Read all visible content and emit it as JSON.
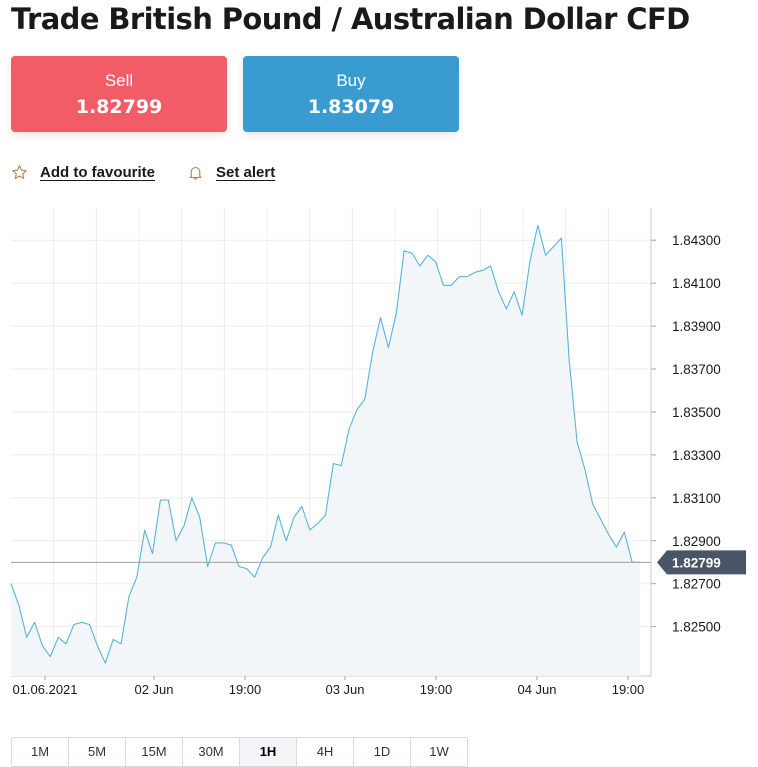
{
  "page": {
    "title": "Trade British Pound / Australian Dollar CFD"
  },
  "trade": {
    "sell": {
      "label": "Sell",
      "price": "1.82799"
    },
    "buy": {
      "label": "Buy",
      "price": "1.83079"
    }
  },
  "actions": {
    "favourite": {
      "label": "Add to favourite",
      "icon": "star-icon"
    },
    "alert": {
      "label": "Set alert",
      "icon": "bell-icon"
    }
  },
  "colors": {
    "sell": "#f25c66",
    "buy": "#3a9bd1",
    "line": "#58b3dc",
    "area": "#f3f6f9",
    "grid": "#ececec",
    "current_price_tag": "#4a5568",
    "icons": "#b8835a"
  },
  "timeframes": {
    "items": [
      "1M",
      "5M",
      "15M",
      "30M",
      "1H",
      "4H",
      "1D",
      "1W"
    ],
    "active": "1H"
  },
  "chart_data": {
    "type": "area",
    "title": "",
    "xlabel": "",
    "ylabel": "",
    "ylim": [
      1.8227,
      1.8445
    ],
    "y_ticks": [
      "1.84300",
      "1.84100",
      "1.83900",
      "1.83700",
      "1.83500",
      "1.83300",
      "1.83100",
      "1.82900",
      "1.82700",
      "1.82500"
    ],
    "x_ticks": [
      "01.06.2021",
      "02 Jun",
      "19:00",
      "03 Jun",
      "19:00",
      "04 Jun",
      "19:00"
    ],
    "current_price": "1.82799",
    "grid": true,
    "y_axis_position": "right",
    "values": [
      1.827,
      1.826,
      1.8245,
      1.8252,
      1.8241,
      1.8236,
      1.8245,
      1.8242,
      1.8251,
      1.8252,
      1.8251,
      1.8241,
      1.8233,
      1.8244,
      1.8242,
      1.8264,
      1.8273,
      1.8295,
      1.8284,
      1.8309,
      1.8309,
      1.829,
      1.8297,
      1.831,
      1.8301,
      1.8278,
      1.8289,
      1.8289,
      1.8288,
      1.8278,
      1.8277,
      1.8273,
      1.8282,
      1.8287,
      1.8302,
      1.829,
      1.8301,
      1.8306,
      1.8295,
      1.8298,
      1.8302,
      1.8326,
      1.8325,
      1.8342,
      1.8351,
      1.8356,
      1.8378,
      1.8394,
      1.838,
      1.8396,
      1.8425,
      1.8424,
      1.8418,
      1.8423,
      1.842,
      1.8409,
      1.8409,
      1.8413,
      1.8413,
      1.8415,
      1.8416,
      1.8418,
      1.8406,
      1.8398,
      1.8406,
      1.8395,
      1.842,
      1.8437,
      1.8423,
      1.8427,
      1.8431,
      1.8374,
      1.8336,
      1.8323,
      1.8307,
      1.83,
      1.8293,
      1.8287,
      1.8294,
      1.828,
      1.828
    ]
  }
}
